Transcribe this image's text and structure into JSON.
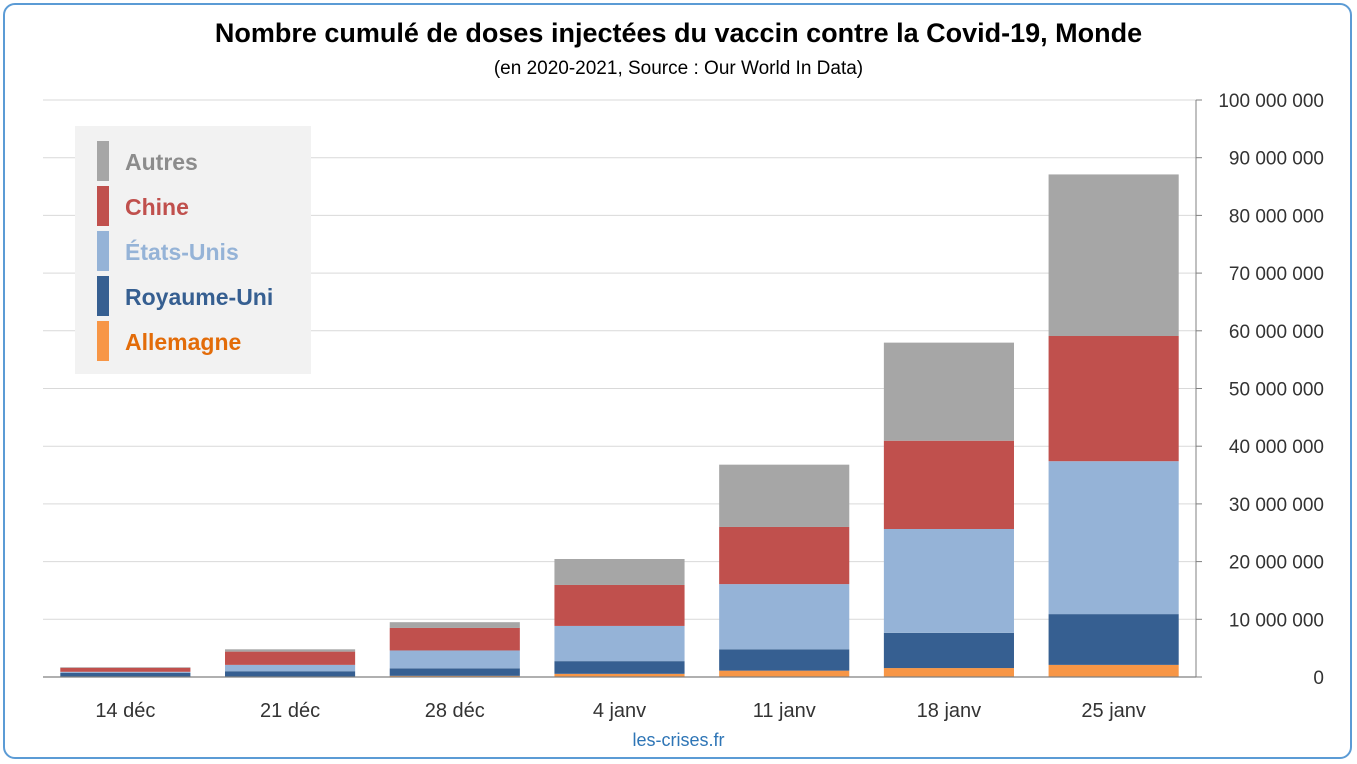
{
  "title": "Nombre cumulé de doses injectées du vaccin contre la Covid-19, Monde",
  "subtitle": "(en 2020-2021, Source : Our World In Data)",
  "footer": "les-crises.fr",
  "colors": {
    "frame": "#5b9bd5",
    "Allemagne": "#f79646",
    "Royaume-Uni": "#365f91",
    "États-Unis": "#95b3d7",
    "Chine": "#c0504d",
    "Autres": "#a6a6a6",
    "legend_Autres": "#8c8c8c",
    "legend_Allemagne": "#e36c09"
  },
  "legend": {
    "items": [
      {
        "label": "Autres",
        "key": "Autres"
      },
      {
        "label": "Chine",
        "key": "Chine"
      },
      {
        "label": "États-Unis",
        "key": "États-Unis"
      },
      {
        "label": "Royaume-Uni",
        "key": "Royaume-Uni"
      },
      {
        "label": "Allemagne",
        "key": "Allemagne"
      }
    ]
  },
  "chart_data": {
    "type": "bar",
    "stacked": true,
    "categories": [
      "14 déc",
      "21 déc",
      "28 déc",
      "4 janv",
      "11 janv",
      "18 janv",
      "25 janv"
    ],
    "series": [
      {
        "name": "Allemagne",
        "values": [
          0,
          0,
          200000,
          550000,
          1100000,
          1550000,
          2100000
        ]
      },
      {
        "name": "Royaume-Uni",
        "values": [
          700000,
          1000000,
          1300000,
          2200000,
          3700000,
          6100000,
          8800000
        ]
      },
      {
        "name": "États-Unis",
        "values": [
          200000,
          1100000,
          3100000,
          6100000,
          11300000,
          18000000,
          26500000
        ]
      },
      {
        "name": "Chine",
        "values": [
          700000,
          2300000,
          3900000,
          7100000,
          9900000,
          15300000,
          21700000
        ]
      },
      {
        "name": "Autres",
        "values": [
          100000,
          400000,
          1000000,
          4500000,
          10800000,
          17000000,
          28000000
        ]
      }
    ],
    "y_ticks": [
      "0",
      "10 000 000",
      "20 000 000",
      "30 000 000",
      "40 000 000",
      "50 000 000",
      "60 000 000",
      "70 000 000",
      "80 000 000",
      "90 000 000",
      "100 000 000"
    ],
    "ylim": [
      0,
      100000000
    ],
    "y_axis_side": "right",
    "grid": true,
    "legend_position": "top-left"
  }
}
